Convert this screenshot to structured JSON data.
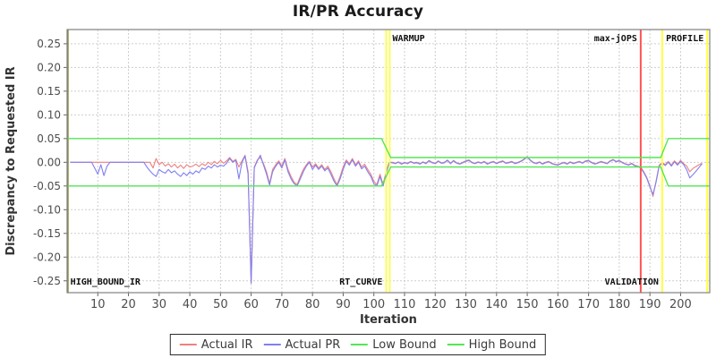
{
  "chart_data": {
    "type": "line",
    "title": "IR/PR Accuracy",
    "xlabel": "Iteration",
    "ylabel": "Discrepancy to Requested IR",
    "xlim": [
      0,
      209.5
    ],
    "ylim": [
      -0.275,
      0.28
    ],
    "x_ticks": [
      10,
      20,
      30,
      40,
      50,
      60,
      70,
      80,
      90,
      100,
      110,
      120,
      130,
      140,
      150,
      160,
      170,
      180,
      190,
      200
    ],
    "y_ticks": [
      0.25,
      0.2,
      0.15,
      0.1,
      0.05,
      0.0,
      -0.05,
      -0.1,
      -0.15,
      -0.2,
      -0.25
    ],
    "grid": true,
    "legend_position": "bottom",
    "colors": {
      "actual_ir": "#f08080",
      "actual_pr": "#8080f0",
      "bound": "#55e555",
      "marker_yellow": "#ffff3c",
      "marker_red": "#ff5252",
      "marker_olive": "#8b8b3a",
      "gridline": "#cdcdcd",
      "plot_border": "#808080",
      "tick_text": "#4d4d4d",
      "axis_text": "#333333"
    },
    "series": [
      {
        "name": "Actual IR",
        "color": "#f08080",
        "x_start": 1,
        "values": [
          0,
          0,
          0,
          0,
          0,
          0,
          0,
          0,
          0,
          0,
          0,
          0,
          0,
          0,
          0,
          0,
          0,
          0,
          0,
          0,
          0,
          0,
          0,
          0,
          0,
          0,
          0,
          -0.012,
          0.008,
          -0.005,
          0,
          -0.008,
          -0.003,
          -0.01,
          -0.004,
          -0.012,
          -0.006,
          -0.013,
          -0.005,
          -0.01,
          -0.008,
          -0.004,
          -0.009,
          -0.003,
          -0.007,
          0,
          -0.005,
          0.002,
          -0.003,
          0.004,
          -0.002,
          0.003,
          0.01,
          0.002,
          0.006,
          -0.01,
          0.003,
          0.015,
          -0.02,
          -0.255,
          -0.01,
          0.005,
          0.01,
          -0.002,
          -0.02,
          -0.045,
          -0.015,
          -0.005,
          0.003,
          -0.008,
          0.008,
          -0.015,
          -0.03,
          -0.042,
          -0.047,
          -0.03,
          -0.015,
          -0.005,
          0.002,
          -0.01,
          -0.003,
          -0.012,
          -0.005,
          -0.015,
          -0.008,
          -0.02,
          -0.035,
          -0.047,
          -0.03,
          -0.01,
          0.005,
          -0.003,
          0.008,
          -0.005,
          0.003,
          -0.01,
          -0.004,
          -0.015,
          -0.025,
          -0.04,
          -0.047,
          -0.025,
          -0.047,
          -0.02,
          0,
          0,
          -0.002,
          0.001,
          -0.003,
          0,
          -0.002,
          0.002,
          -0.001,
          0,
          -0.003,
          0.001,
          -0.002,
          0.004,
          0,
          -0.002,
          0.003,
          -0.001,
          0,
          0.005,
          -0.002,
          0.004,
          -0.001,
          -0.003,
          0,
          0.003,
          0.005,
          0,
          -0.002,
          0.001,
          -0.001,
          0.002,
          -0.003,
          0,
          0.002,
          -0.002,
          0.001,
          0.003,
          -0.001,
          0,
          0.002,
          -0.002,
          0,
          0.003,
          0.007,
          0.012,
          0.005,
          0,
          -0.002,
          0.001,
          -0.003,
          0,
          0.002,
          -0.002,
          -0.004,
          -0.005,
          -0.002,
          0,
          -0.003,
          0.001,
          -0.002,
          0,
          0.002,
          -0.001,
          0.003,
          0.004,
          0,
          -0.003,
          -0.001,
          0.002,
          0,
          -0.002,
          0.003,
          0.006,
          0.002,
          0.004,
          0,
          -0.003,
          -0.005,
          -0.002,
          -0.006,
          -0.008,
          -0.01,
          -0.02,
          -0.032,
          -0.05,
          -0.072,
          -0.04,
          -0.006,
          0,
          -0.005,
          0.002,
          -0.006,
          0.003,
          -0.004,
          0.004,
          -0.003,
          -0.008,
          -0.02,
          -0.013,
          -0.009,
          -0.005,
          -0.002
        ]
      },
      {
        "name": "Actual PR",
        "color": "#8080f0",
        "x_start": 1,
        "values": [
          0,
          0,
          0,
          0,
          0,
          0,
          0,
          0,
          -0.012,
          -0.025,
          -0.005,
          -0.028,
          -0.008,
          0,
          0,
          0,
          0,
          0,
          0,
          0,
          0,
          0,
          0,
          0,
          0,
          -0.01,
          -0.018,
          -0.025,
          -0.03,
          -0.015,
          -0.02,
          -0.023,
          -0.015,
          -0.022,
          -0.018,
          -0.025,
          -0.03,
          -0.022,
          -0.028,
          -0.02,
          -0.025,
          -0.018,
          -0.022,
          -0.012,
          -0.015,
          -0.008,
          -0.012,
          -0.005,
          -0.01,
          -0.006,
          -0.008,
          -0.002,
          0.008,
          0,
          0.004,
          -0.035,
          0,
          0.013,
          -0.025,
          -0.255,
          -0.012,
          0.003,
          0.015,
          -0.005,
          -0.025,
          -0.048,
          -0.02,
          -0.008,
          0,
          -0.012,
          0.005,
          -0.02,
          -0.035,
          -0.045,
          -0.05,
          -0.035,
          -0.02,
          -0.008,
          0,
          -0.015,
          -0.006,
          -0.015,
          -0.008,
          -0.018,
          -0.012,
          -0.025,
          -0.04,
          -0.05,
          -0.035,
          -0.015,
          0.002,
          -0.006,
          0.005,
          -0.008,
          0,
          -0.014,
          -0.008,
          -0.02,
          -0.03,
          -0.045,
          -0.05,
          -0.03,
          -0.05,
          -0.025,
          0,
          -0.001,
          -0.003,
          0,
          -0.004,
          -0.001,
          -0.003,
          0.001,
          -0.002,
          -0.001,
          -0.004,
          0,
          -0.003,
          0.003,
          -0.001,
          -0.003,
          0.002,
          -0.002,
          -0.001,
          0.004,
          -0.003,
          0.003,
          -0.002,
          -0.004,
          -0.001,
          0.002,
          0.004,
          -0.001,
          -0.003,
          0,
          -0.002,
          0.001,
          -0.004,
          -0.001,
          0.001,
          -0.003,
          0,
          0.002,
          -0.002,
          -0.001,
          0.001,
          -0.003,
          -0.001,
          0.002,
          0.006,
          0.011,
          0.004,
          -0.001,
          -0.003,
          0,
          -0.004,
          -0.001,
          0.001,
          -0.003,
          -0.005,
          -0.006,
          -0.003,
          -0.001,
          -0.004,
          0,
          -0.003,
          -0.001,
          0.001,
          -0.002,
          0.002,
          0.003,
          -0.001,
          -0.004,
          -0.002,
          0.001,
          -0.001,
          -0.003,
          0.002,
          0.005,
          0.001,
          0.003,
          -0.001,
          -0.004,
          -0.006,
          -0.003,
          -0.007,
          -0.009,
          -0.012,
          -0.022,
          -0.034,
          -0.052,
          -0.068,
          -0.042,
          -0.008,
          -0.002,
          -0.007,
          0,
          -0.008,
          0.001,
          -0.006,
          0.002,
          -0.005,
          -0.016,
          -0.033,
          -0.026,
          -0.019,
          -0.011,
          -0.003
        ]
      },
      {
        "name": "Low Bound",
        "color": "#55e555",
        "points": [
          [
            0.2,
            -0.05
          ],
          [
            102.5,
            -0.05
          ],
          [
            105.5,
            -0.01
          ],
          [
            193.5,
            -0.01
          ],
          [
            196,
            -0.05
          ],
          [
            209.3,
            -0.05
          ]
        ]
      },
      {
        "name": "High Bound",
        "color": "#55e555",
        "points": [
          [
            0.2,
            0.05
          ],
          [
            102.5,
            0.05
          ],
          [
            105.5,
            0.01
          ],
          [
            193.5,
            0.01
          ],
          [
            196,
            0.05
          ],
          [
            209.3,
            0.05
          ]
        ]
      }
    ],
    "markers": [
      {
        "name": "high-bound-ir",
        "label": "HIGH_BOUND_IR",
        "x": 0.2,
        "color": "#8b8b3a",
        "width": 2,
        "label_side": "bottom",
        "anchor": "start"
      },
      {
        "name": "warmup",
        "label": "WARMUP",
        "x": 104,
        "x2": 105.2,
        "color": "#ffff3c",
        "width": 1.7,
        "label_side": "top",
        "anchor": "start"
      },
      {
        "name": "rt-curve",
        "label": "RT_CURVE",
        "x": 104,
        "color": "#ffff3c",
        "width": 0,
        "label_side": "bottom",
        "anchor": "end"
      },
      {
        "name": "max-jops",
        "label": "max-jOPS",
        "x": 187,
        "color": "#ff5252",
        "width": 2,
        "label_side": "top",
        "anchor": "end"
      },
      {
        "name": "validation",
        "label": "VALIDATION",
        "x": 194,
        "color": "#ffff3c",
        "width": 2,
        "label_side": "bottom",
        "anchor": "end"
      },
      {
        "name": "profile",
        "label": "PROFILE",
        "x": 208.7,
        "color": "#ffff3c",
        "width": 2,
        "label_side": "top",
        "anchor": "end"
      }
    ]
  },
  "legend": {
    "items": [
      {
        "label": "Actual IR",
        "color": "#f08080"
      },
      {
        "label": "Actual PR",
        "color": "#8080f0"
      },
      {
        "label": "Low Bound",
        "color": "#55e555"
      },
      {
        "label": "High Bound",
        "color": "#55e555"
      }
    ]
  }
}
